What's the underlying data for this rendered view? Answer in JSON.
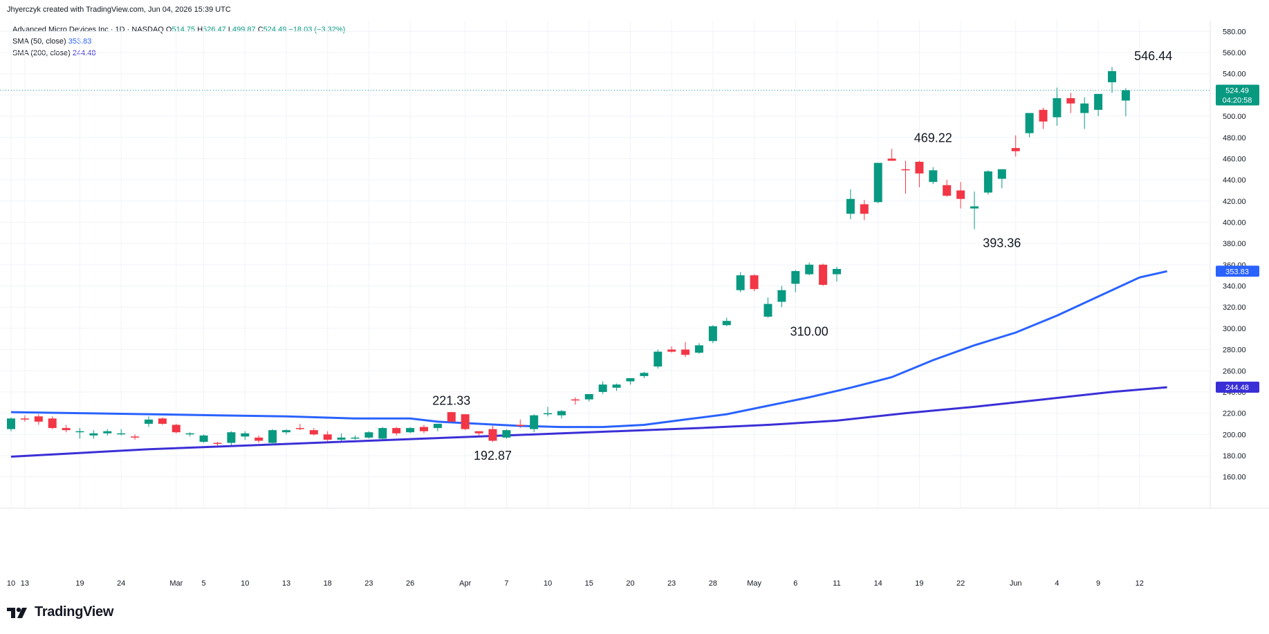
{
  "credit": "Jhyerczyk created with TradingView.com, Jun 04, 2026 15:39 UTC",
  "legend": {
    "symbol": "Advanced Micro Devices Inc · 1D · NASDAQ",
    "o_label": "O",
    "o_value": "514.75",
    "h_label": "H",
    "h_value": "526.47",
    "l_label": "L",
    "l_value": "499.87",
    "c_label": "C",
    "c_value": "524.49",
    "change": "−18.03 (−3.32%)",
    "sma50_label": "SMA (50, close)",
    "sma50_value": "353.83",
    "sma200_label": "SMA (200, close)",
    "sma200_value": "244.48"
  },
  "brand": {
    "name": "TradingView",
    "logo_icon": "tradingview-logo-icon"
  },
  "colors": {
    "up": "#089981",
    "down": "#f23645",
    "sma50": "#2962ff",
    "sma200": "#3a2fd6",
    "grid": "#f0f3fa"
  },
  "chart_data": {
    "type": "candlestick",
    "ylim": [
      150,
      590
    ],
    "y_ticks": [
      160,
      180,
      200,
      220,
      240,
      260,
      280,
      300,
      320,
      340,
      360,
      380,
      400,
      420,
      440,
      460,
      480,
      500,
      520,
      540,
      560,
      580
    ],
    "y_tick_labels": [
      "160.00",
      "180.00",
      "200.00",
      "220.00",
      "240.00",
      "260.00",
      "280.00",
      "300.00",
      "320.00",
      "340.00",
      "360.00",
      "380.00",
      "400.00",
      "420.00",
      "440.00",
      "460.00",
      "480.00",
      "500.00",
      "520.00",
      "540.00",
      "560.00",
      "580.00"
    ],
    "x_ticks": [
      {
        "label": "10",
        "i": 0
      },
      {
        "label": "13",
        "i": 1
      },
      {
        "label": "19",
        "i": 5
      },
      {
        "label": "24",
        "i": 8
      },
      {
        "label": "Mar",
        "i": 12
      },
      {
        "label": "5",
        "i": 14
      },
      {
        "label": "10",
        "i": 17
      },
      {
        "label": "13",
        "i": 20
      },
      {
        "label": "18",
        "i": 23
      },
      {
        "label": "23",
        "i": 26
      },
      {
        "label": "26",
        "i": 29
      },
      {
        "label": "Apr",
        "i": 33
      },
      {
        "label": "7",
        "i": 36
      },
      {
        "label": "10",
        "i": 39
      },
      {
        "label": "15",
        "i": 42
      },
      {
        "label": "20",
        "i": 45
      },
      {
        "label": "23",
        "i": 48
      },
      {
        "label": "28",
        "i": 51
      },
      {
        "label": "May",
        "i": 54
      },
      {
        "label": "6",
        "i": 57
      },
      {
        "label": "11",
        "i": 60
      },
      {
        "label": "14",
        "i": 63
      },
      {
        "label": "19",
        "i": 66
      },
      {
        "label": "22",
        "i": 69
      },
      {
        "label": "Jun",
        "i": 73
      },
      {
        "label": "4",
        "i": 76
      },
      {
        "label": "9",
        "i": 79
      },
      {
        "label": "12",
        "i": 82
      }
    ],
    "candles": [
      {
        "o": 205,
        "h": 216,
        "l": 203,
        "c": 215
      },
      {
        "o": 215,
        "h": 218,
        "l": 212,
        "c": 214
      },
      {
        "o": 217,
        "h": 219,
        "l": 209,
        "c": 212
      },
      {
        "o": 215,
        "h": 217,
        "l": 205,
        "c": 206
      },
      {
        "o": 206,
        "h": 209,
        "l": 202,
        "c": 204
      },
      {
        "o": 203,
        "h": 206,
        "l": 196,
        "c": 203
      },
      {
        "o": 199,
        "h": 204,
        "l": 196,
        "c": 201
      },
      {
        "o": 201,
        "h": 205,
        "l": 199,
        "c": 203
      },
      {
        "o": 201,
        "h": 205,
        "l": 199,
        "c": 201
      },
      {
        "o": 198,
        "h": 200,
        "l": 195,
        "c": 197
      },
      {
        "o": 210,
        "h": 217,
        "l": 207,
        "c": 214
      },
      {
        "o": 215,
        "h": 216,
        "l": 209,
        "c": 210
      },
      {
        "o": 209,
        "h": 210,
        "l": 201,
        "c": 202
      },
      {
        "o": 200,
        "h": 202,
        "l": 198,
        "c": 201
      },
      {
        "o": 193,
        "h": 200,
        "l": 192,
        "c": 199
      },
      {
        "o": 192,
        "h": 193,
        "l": 189,
        "c": 191
      },
      {
        "o": 192,
        "h": 203,
        "l": 190,
        "c": 202
      },
      {
        "o": 198,
        "h": 203,
        "l": 195,
        "c": 201
      },
      {
        "o": 197,
        "h": 199,
        "l": 192,
        "c": 194
      },
      {
        "o": 192,
        "h": 205,
        "l": 190,
        "c": 204
      },
      {
        "o": 202,
        "h": 205,
        "l": 200,
        "c": 204
      },
      {
        "o": 206,
        "h": 210,
        "l": 204,
        "c": 205
      },
      {
        "o": 204,
        "h": 206,
        "l": 199,
        "c": 200
      },
      {
        "o": 200,
        "h": 203,
        "l": 193,
        "c": 195
      },
      {
        "o": 195,
        "h": 201,
        "l": 194,
        "c": 197
      },
      {
        "o": 197,
        "h": 199,
        "l": 195,
        "c": 197
      },
      {
        "o": 197,
        "h": 203,
        "l": 196,
        "c": 202
      },
      {
        "o": 196,
        "h": 207,
        "l": 195,
        "c": 206
      },
      {
        "o": 206,
        "h": 207,
        "l": 199,
        "c": 201
      },
      {
        "o": 202,
        "h": 207,
        "l": 201,
        "c": 206
      },
      {
        "o": 207,
        "h": 209,
        "l": 201,
        "c": 203
      },
      {
        "o": 206,
        "h": 210,
        "l": 203,
        "c": 210
      },
      {
        "o": 221,
        "h": 221.33,
        "l": 212,
        "c": 212
      },
      {
        "o": 219,
        "h": 219,
        "l": 204,
        "c": 205
      },
      {
        "o": 203,
        "h": 203,
        "l": 199,
        "c": 201
      },
      {
        "o": 205,
        "h": 208,
        "l": 192.87,
        "c": 194
      },
      {
        "o": 197,
        "h": 205,
        "l": 196,
        "c": 204
      },
      {
        "o": 209,
        "h": 214,
        "l": 206,
        "c": 208
      },
      {
        "o": 205,
        "h": 219,
        "l": 202,
        "c": 218
      },
      {
        "o": 219,
        "h": 226,
        "l": 217,
        "c": 220
      },
      {
        "o": 218,
        "h": 223,
        "l": 215,
        "c": 222
      },
      {
        "o": 233,
        "h": 235,
        "l": 228,
        "c": 232
      },
      {
        "o": 233,
        "h": 238,
        "l": 231,
        "c": 238
      },
      {
        "o": 240,
        "h": 250,
        "l": 238,
        "c": 247
      },
      {
        "o": 244,
        "h": 248,
        "l": 241,
        "c": 247
      },
      {
        "o": 250,
        "h": 252,
        "l": 247,
        "c": 253
      },
      {
        "o": 255,
        "h": 259,
        "l": 253,
        "c": 258
      },
      {
        "o": 264,
        "h": 280,
        "l": 262,
        "c": 278
      },
      {
        "o": 280,
        "h": 283,
        "l": 277,
        "c": 278
      },
      {
        "o": 280,
        "h": 287,
        "l": 273,
        "c": 275
      },
      {
        "o": 277,
        "h": 286,
        "l": 276,
        "c": 284
      },
      {
        "o": 288,
        "h": 303,
        "l": 286,
        "c": 302
      },
      {
        "o": 303,
        "h": 310,
        "l": 302,
        "c": 307
      },
      {
        "o": 336,
        "h": 353,
        "l": 334,
        "c": 350
      },
      {
        "o": 350,
        "h": 351,
        "l": 335,
        "c": 337
      },
      {
        "o": 311,
        "h": 329,
        "l": 310,
        "c": 323
      },
      {
        "o": 325,
        "h": 340,
        "l": 320,
        "c": 336
      },
      {
        "o": 342,
        "h": 355,
        "l": 334,
        "c": 354
      },
      {
        "o": 351,
        "h": 362,
        "l": 350,
        "c": 360
      },
      {
        "o": 360,
        "h": 361,
        "l": 340,
        "c": 341
      },
      {
        "o": 351,
        "h": 358,
        "l": 344,
        "c": 356
      },
      {
        "o": 408,
        "h": 431,
        "l": 403,
        "c": 422
      },
      {
        "o": 417,
        "h": 421,
        "l": 402,
        "c": 408
      },
      {
        "o": 419,
        "h": 456,
        "l": 418,
        "c": 456
      },
      {
        "o": 460,
        "h": 469.22,
        "l": 458,
        "c": 458
      },
      {
        "o": 450,
        "h": 458,
        "l": 427,
        "c": 449
      },
      {
        "o": 457,
        "h": 458,
        "l": 433,
        "c": 446
      },
      {
        "o": 438,
        "h": 452,
        "l": 436,
        "c": 449
      },
      {
        "o": 435,
        "h": 440,
        "l": 424,
        "c": 425
      },
      {
        "o": 430,
        "h": 438,
        "l": 413,
        "c": 422
      },
      {
        "o": 413,
        "h": 429,
        "l": 393.36,
        "c": 415
      },
      {
        "o": 428,
        "h": 449,
        "l": 426,
        "c": 448
      },
      {
        "o": 441,
        "h": 450,
        "l": 432,
        "c": 450
      },
      {
        "o": 470,
        "h": 482,
        "l": 462,
        "c": 467
      },
      {
        "o": 484,
        "h": 503,
        "l": 480,
        "c": 503
      },
      {
        "o": 506,
        "h": 508,
        "l": 488,
        "c": 495
      },
      {
        "o": 499,
        "h": 527,
        "l": 491,
        "c": 517
      },
      {
        "o": 517,
        "h": 522,
        "l": 503,
        "c": 512
      },
      {
        "o": 503,
        "h": 518,
        "l": 488,
        "c": 512
      },
      {
        "o": 506,
        "h": 521,
        "l": 500,
        "c": 521
      },
      {
        "o": 532,
        "h": 546.44,
        "l": 522,
        "c": 542.52
      },
      {
        "o": 514.75,
        "h": 526.47,
        "l": 499.87,
        "c": 524.49
      }
    ],
    "sma50": [
      [
        0,
        221
      ],
      [
        5,
        220
      ],
      [
        10,
        219
      ],
      [
        15,
        218
      ],
      [
        20,
        217
      ],
      [
        25,
        215
      ],
      [
        29,
        215
      ],
      [
        31,
        212
      ],
      [
        34,
        210
      ],
      [
        37,
        208
      ],
      [
        40,
        207
      ],
      [
        43,
        207
      ],
      [
        46,
        209
      ],
      [
        49,
        214
      ],
      [
        52,
        219
      ],
      [
        55,
        227
      ],
      [
        58,
        235
      ],
      [
        61,
        244
      ],
      [
        64,
        254
      ],
      [
        67,
        270
      ],
      [
        70,
        284
      ],
      [
        73,
        296
      ],
      [
        76,
        312
      ],
      [
        79,
        330
      ],
      [
        82,
        348
      ],
      [
        84,
        353.83
      ]
    ],
    "sma200": [
      [
        0,
        179
      ],
      [
        10,
        186
      ],
      [
        20,
        191
      ],
      [
        30,
        196
      ],
      [
        40,
        201
      ],
      [
        50,
        206
      ],
      [
        55,
        209
      ],
      [
        60,
        213
      ],
      [
        65,
        220
      ],
      [
        70,
        226
      ],
      [
        75,
        233
      ],
      [
        80,
        240
      ],
      [
        84,
        244.48
      ]
    ],
    "current_price_label": "524.49",
    "countdown_label": "04:20:58",
    "sma50_tag": "353.83",
    "sma200_tag": "244.48",
    "annotations": [
      {
        "text": "546.44",
        "i": 83,
        "value": 546.44,
        "pos": "above"
      },
      {
        "text": "469.22",
        "i": 67,
        "value": 469.22,
        "pos": "above"
      },
      {
        "text": "393.36",
        "i": 72,
        "value": 393.36,
        "pos": "below"
      },
      {
        "text": "310.00",
        "i": 58,
        "value": 310.0,
        "pos": "below"
      },
      {
        "text": "221.33",
        "i": 32,
        "value": 221.33,
        "pos": "above"
      },
      {
        "text": "192.87",
        "i": 35,
        "value": 192.87,
        "pos": "below"
      }
    ]
  }
}
